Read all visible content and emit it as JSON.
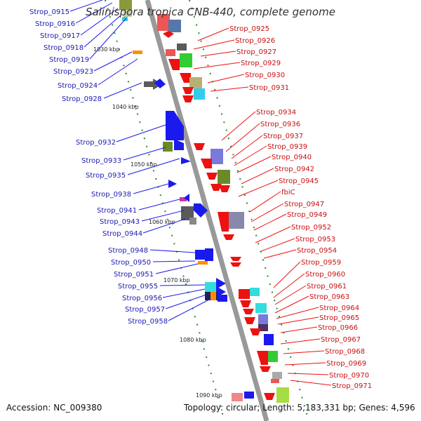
{
  "title": "Salinispora tropica CNB-440, complete genome",
  "footer": {
    "accession": "Accession: NC_009380",
    "summary": "Topology: circular; Length: 5,183,331 bp; Genes: 4,596"
  },
  "colors": {
    "left_label": "#1a1ab0",
    "right_label": "#c81010",
    "backbone": "#999999",
    "ticks": "#2a8a2a",
    "forward_gene": "#1a1aee",
    "reverse_gene": "#ee1111"
  },
  "scale_labels": [
    "1030 kbp",
    "1040 kbp",
    "1050 kbp",
    "1060 kbp",
    "1070 kbp",
    "1080 kbp",
    "1090 kbp"
  ],
  "left_labels": [
    "Strop_0915",
    "Strop_0916",
    "Strop_0917",
    "Strop_0918",
    "Strop_0919",
    "Strop_0923",
    "Strop_0924",
    "Strop_0928",
    "Strop_0932",
    "Strop_0933",
    "Strop_0935",
    "Strop_0938",
    "Strop_0941",
    "Strop_0943",
    "Strop_0944",
    "Strop_0948",
    "Strop_0950",
    "Strop_0951",
    "Strop_0955",
    "Strop_0956",
    "Strop_0957",
    "Strop_0958"
  ],
  "right_labels": [
    "Strop_0925",
    "Strop_0926",
    "Strop_0927",
    "Strop_0929",
    "Strop_0930",
    "Strop_0931",
    "Strop_0934",
    "Strop_0936",
    "Strop_0937",
    "Strop_0939",
    "Strop_0940",
    "Strop_0942",
    "Strop_0945",
    "fbiC",
    "Strop_0947",
    "Strop_0949",
    "Strop_0952",
    "Strop_0953",
    "Strop_0954",
    "Strop_0959",
    "Strop_0960",
    "Strop_0961",
    "Strop_0963",
    "Strop_0964",
    "Strop_0965",
    "Strop_0966",
    "Strop_0967",
    "Strop_0968",
    "Strop_0969",
    "Strop_0970",
    "Strop_0971"
  ]
}
